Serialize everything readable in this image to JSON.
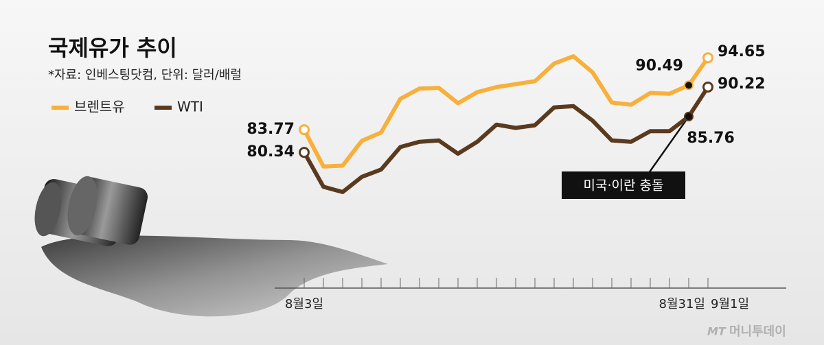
{
  "chart_data": {
    "type": "line",
    "title": "국제유가 추이",
    "subtitle": "*자료: 인베스팅닷컴, 단위: 달러/배럴",
    "categories": [
      "8월3일",
      null,
      null,
      null,
      null,
      null,
      null,
      null,
      null,
      null,
      null,
      null,
      null,
      null,
      null,
      null,
      null,
      null,
      null,
      null,
      "8월31일",
      "9월1일"
    ],
    "series": [
      {
        "name": "브렌트유",
        "color": "#f8b03c",
        "values": [
          83.77,
          78.21,
          78.33,
          82.1,
          83.33,
          88.44,
          89.99,
          90.1,
          87.77,
          89.44,
          90.21,
          90.66,
          91.1,
          93.77,
          94.88,
          92.44,
          87.88,
          87.55,
          89.33,
          89.21,
          90.49,
          94.65
        ]
      },
      {
        "name": "WTI",
        "color": "#5a3a1e",
        "values": [
          80.34,
          75.14,
          74.34,
          76.64,
          77.74,
          81.14,
          81.94,
          82.14,
          80.14,
          81.94,
          84.54,
          84.04,
          84.44,
          87.14,
          87.34,
          85.14,
          82.14,
          81.94,
          83.54,
          83.54,
          85.76,
          90.22
        ]
      }
    ],
    "annotation": "미국·이란 충돌",
    "credit_logo": "MT",
    "credit": "머니투데이"
  }
}
